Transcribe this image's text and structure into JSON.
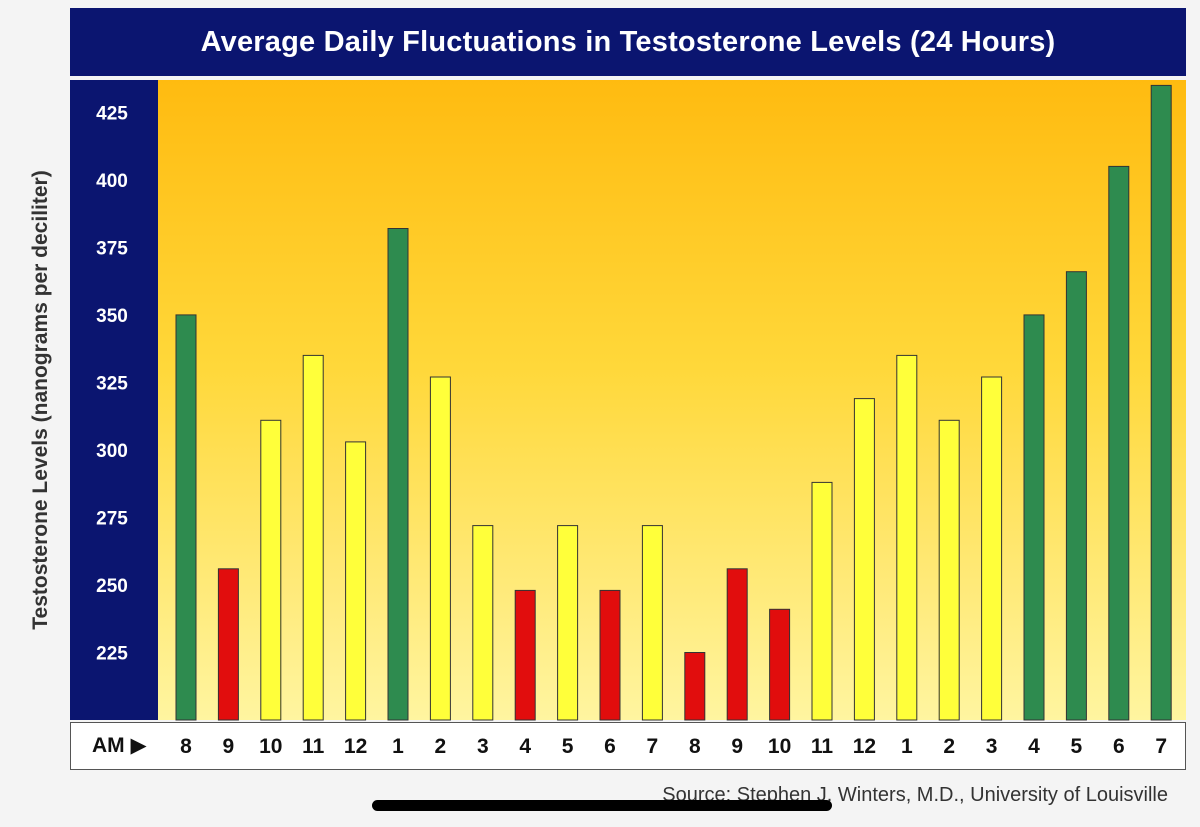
{
  "chart_data": {
    "type": "bar",
    "title": "Average Daily Fluctuations in Testosterone Levels (24 Hours)",
    "ylabel": "Testosterone Levels (nanograms per deciliter)",
    "xlabel": "",
    "start_label": "AM ▶",
    "source": "Source: Stephen J. Winters, M.D., University of Louisville",
    "ylim": [
      200,
      437
    ],
    "yticks": [
      225,
      250,
      275,
      300,
      325,
      350,
      375,
      400,
      425
    ],
    "categories": [
      "8",
      "9",
      "10",
      "11",
      "12",
      "1",
      "2",
      "3",
      "4",
      "5",
      "6",
      "7",
      "8",
      "9",
      "10",
      "11",
      "12",
      "1",
      "2",
      "3",
      "4",
      "5",
      "6",
      "7"
    ],
    "values": [
      350,
      256,
      311,
      335,
      303,
      382,
      327,
      272,
      248,
      272,
      248,
      272,
      225,
      256,
      241,
      288,
      319,
      335,
      311,
      327,
      350,
      366,
      405,
      435
    ],
    "bar_levels": [
      "green",
      "red",
      "yellow",
      "yellow",
      "yellow",
      "green",
      "yellow",
      "yellow",
      "red",
      "yellow",
      "red",
      "yellow",
      "red",
      "red",
      "red",
      "yellow",
      "yellow",
      "yellow",
      "yellow",
      "yellow",
      "green",
      "green",
      "green",
      "green"
    ],
    "colors": {
      "green": "#2e8b4f",
      "red": "#e10d0d",
      "yellow": "#ffff3a",
      "title_band": "#0b1570"
    },
    "grid": false,
    "legend": "none"
  }
}
